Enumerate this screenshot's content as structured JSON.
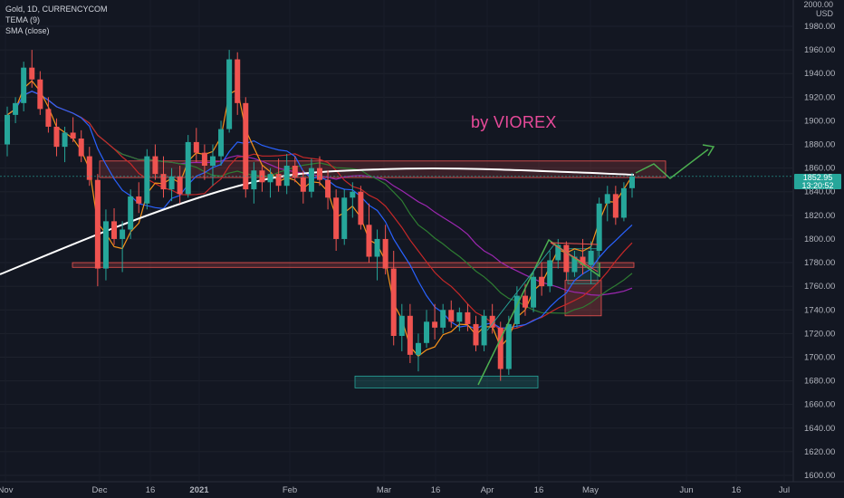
{
  "header": {
    "title": "Gold, 1D, CURRENCYCOM",
    "indicator_1": "TEMA (9)",
    "indicator_2": "SMA (close)"
  },
  "currency": {
    "line1": "2000.00",
    "line2": "USD"
  },
  "watermark": "by VIOREX",
  "last_price": {
    "value": "1852.95",
    "countdown": "13:20:52",
    "color": "#26a69a"
  },
  "colors": {
    "background": "#131722",
    "up": "#26a69a",
    "down": "#ef5350",
    "tema": "#f7931a",
    "ma_blue": "#2962ff",
    "ma_red": "#c62828",
    "ma_green": "#2e7d32",
    "ma_purple": "#9c27b0",
    "sma_white": "#ffffff",
    "text": "#b2b5be"
  },
  "chart_data": {
    "type": "candlestick",
    "title": "Gold, 1D, CURRENCYCOM",
    "ylim": [
      1595,
      2005
    ],
    "y_ticks": [
      1600,
      1620,
      1640,
      1660,
      1680,
      1700,
      1720,
      1740,
      1760,
      1780,
      1800,
      1820,
      1840,
      1860,
      1880,
      1900,
      1920,
      1940,
      1960,
      1980
    ],
    "x_ticks": [
      "Nov",
      "Dec",
      "16",
      "2021",
      "Feb",
      "Mar",
      "16",
      "Apr",
      "16",
      "May",
      "Jun",
      "16",
      "Jul"
    ],
    "candles": [
      [
        1880,
        1912,
        1870,
        1905
      ],
      [
        1905,
        1920,
        1898,
        1915
      ],
      [
        1915,
        1950,
        1908,
        1945
      ],
      [
        1945,
        1960,
        1928,
        1935
      ],
      [
        1935,
        1942,
        1905,
        1910
      ],
      [
        1910,
        1920,
        1890,
        1895
      ],
      [
        1895,
        1902,
        1870,
        1878
      ],
      [
        1878,
        1895,
        1865,
        1890
      ],
      [
        1890,
        1903,
        1882,
        1885
      ],
      [
        1885,
        1892,
        1865,
        1870
      ],
      [
        1870,
        1878,
        1845,
        1850
      ],
      [
        1850,
        1855,
        1760,
        1775
      ],
      [
        1775,
        1825,
        1765,
        1815
      ],
      [
        1815,
        1826,
        1795,
        1800
      ],
      [
        1800,
        1815,
        1772,
        1808
      ],
      [
        1808,
        1842,
        1800,
        1836
      ],
      [
        1836,
        1848,
        1822,
        1830
      ],
      [
        1830,
        1876,
        1825,
        1870
      ],
      [
        1870,
        1880,
        1850,
        1855
      ],
      [
        1855,
        1870,
        1835,
        1842
      ],
      [
        1842,
        1860,
        1832,
        1853
      ],
      [
        1853,
        1862,
        1830,
        1838
      ],
      [
        1838,
        1888,
        1835,
        1882
      ],
      [
        1882,
        1894,
        1865,
        1873
      ],
      [
        1873,
        1880,
        1850,
        1862
      ],
      [
        1862,
        1880,
        1845,
        1870
      ],
      [
        1870,
        1900,
        1862,
        1893
      ],
      [
        1893,
        1960,
        1890,
        1952
      ],
      [
        1952,
        1958,
        1905,
        1915
      ],
      [
        1915,
        1920,
        1835,
        1842
      ],
      [
        1842,
        1865,
        1830,
        1858
      ],
      [
        1858,
        1862,
        1840,
        1848
      ],
      [
        1848,
        1860,
        1835,
        1855
      ],
      [
        1855,
        1868,
        1840,
        1845
      ],
      [
        1845,
        1872,
        1838,
        1862
      ],
      [
        1862,
        1870,
        1848,
        1852
      ],
      [
        1852,
        1858,
        1830,
        1840
      ],
      [
        1840,
        1868,
        1835,
        1860
      ],
      [
        1860,
        1870,
        1845,
        1850
      ],
      [
        1850,
        1858,
        1825,
        1835
      ],
      [
        1835,
        1842,
        1790,
        1800
      ],
      [
        1800,
        1842,
        1795,
        1835
      ],
      [
        1835,
        1848,
        1818,
        1840
      ],
      [
        1840,
        1845,
        1808,
        1812
      ],
      [
        1812,
        1830,
        1780,
        1785
      ],
      [
        1785,
        1808,
        1765,
        1800
      ],
      [
        1800,
        1812,
        1770,
        1775
      ],
      [
        1775,
        1790,
        1710,
        1718
      ],
      [
        1718,
        1745,
        1705,
        1735
      ],
      [
        1735,
        1745,
        1695,
        1702
      ],
      [
        1702,
        1720,
        1688,
        1712
      ],
      [
        1712,
        1740,
        1708,
        1730
      ],
      [
        1730,
        1745,
        1715,
        1725
      ],
      [
        1725,
        1745,
        1720,
        1740
      ],
      [
        1740,
        1748,
        1725,
        1730
      ],
      [
        1730,
        1742,
        1722,
        1738
      ],
      [
        1738,
        1745,
        1722,
        1728
      ],
      [
        1728,
        1735,
        1705,
        1710
      ],
      [
        1710,
        1740,
        1705,
        1735
      ],
      [
        1735,
        1745,
        1720,
        1725
      ],
      [
        1725,
        1730,
        1680,
        1690
      ],
      [
        1690,
        1735,
        1685,
        1728
      ],
      [
        1728,
        1760,
        1725,
        1752
      ],
      [
        1752,
        1762,
        1735,
        1742
      ],
      [
        1742,
        1772,
        1738,
        1768
      ],
      [
        1768,
        1780,
        1752,
        1760
      ],
      [
        1760,
        1790,
        1755,
        1782
      ],
      [
        1782,
        1800,
        1775,
        1795
      ],
      [
        1795,
        1798,
        1765,
        1772
      ],
      [
        1772,
        1790,
        1768,
        1785
      ],
      [
        1785,
        1800,
        1770,
        1778
      ],
      [
        1778,
        1798,
        1762,
        1790
      ],
      [
        1790,
        1835,
        1785,
        1830
      ],
      [
        1830,
        1845,
        1815,
        1838
      ],
      [
        1838,
        1845,
        1812,
        1818
      ],
      [
        1818,
        1848,
        1815,
        1843
      ],
      [
        1843,
        1856,
        1835,
        1853
      ]
    ],
    "zones": [
      {
        "label": "resistance",
        "from": 1852,
        "to": 1866
      },
      {
        "label": "support",
        "from": 1776,
        "to": 1780
      },
      {
        "label": "base",
        "from": 1674,
        "to": 1684
      }
    ]
  }
}
